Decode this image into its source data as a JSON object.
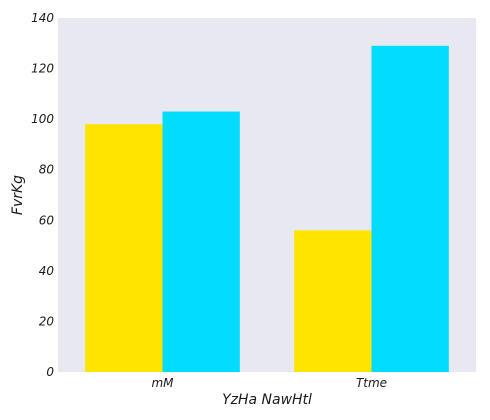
{
  "chart_data": {
    "type": "bar",
    "title": "",
    "xlabel": "YzHa NawHtl",
    "ylabel": "FvrKg",
    "categories": [
      "mM",
      "Ttme"
    ],
    "series": [
      {
        "values": [
          98,
          56
        ],
        "color": "#FFE400"
      },
      {
        "values": [
          103,
          129
        ],
        "color": "#00DDFF"
      }
    ],
    "ylim": [
      0,
      140
    ],
    "yticks": [
      0,
      20,
      40,
      60,
      80,
      100,
      120,
      140
    ],
    "grid": false,
    "legend": "none",
    "plot_background": "#E8E8F1"
  }
}
